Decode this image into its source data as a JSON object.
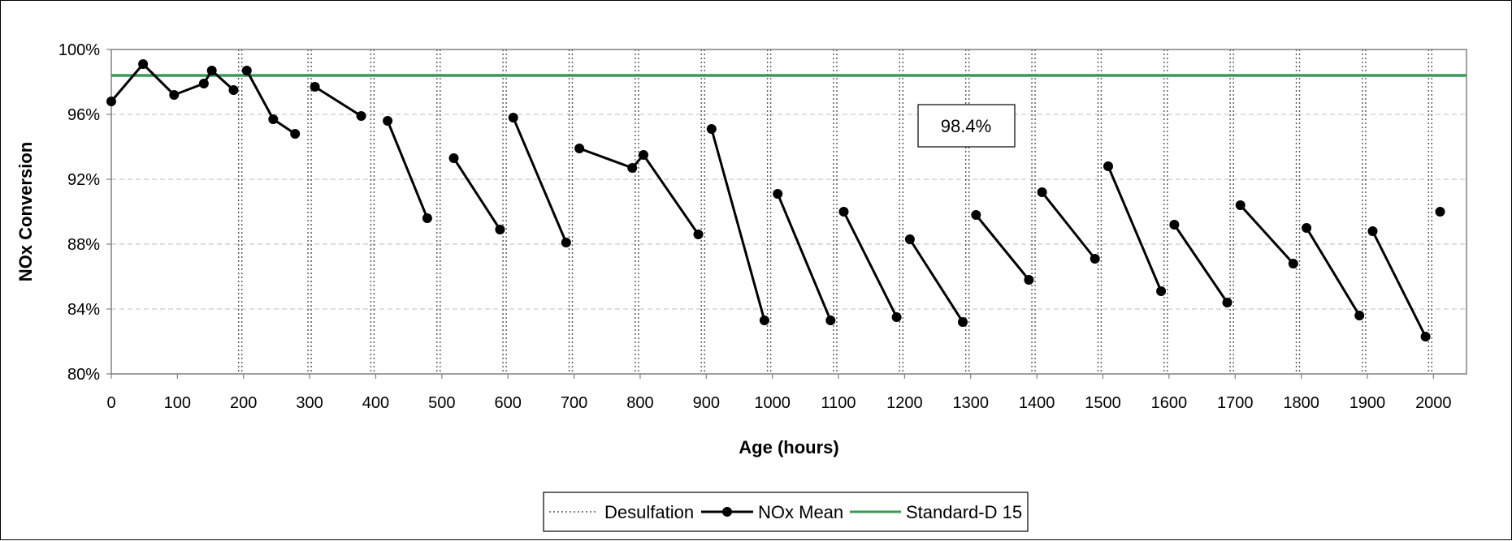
{
  "chart_data": {
    "type": "line",
    "xlabel": "Age (hours)",
    "ylabel": "NOx Conversion",
    "xlim": [
      0,
      2050
    ],
    "ylim": [
      80,
      100
    ],
    "x_ticks": [
      0,
      100,
      200,
      300,
      400,
      500,
      600,
      700,
      800,
      900,
      1000,
      1100,
      1200,
      1300,
      1400,
      1500,
      1600,
      1700,
      1800,
      1900,
      2000
    ],
    "y_ticks": [
      80,
      84,
      88,
      92,
      96,
      100
    ],
    "y_tick_labels": [
      "80%",
      "84%",
      "88%",
      "92%",
      "96%",
      "100%"
    ],
    "grid": "horizontal dashed",
    "legend_position": "bottom-center",
    "legend": [
      "Desulfation",
      "NOx Mean",
      "Standard-D 15"
    ],
    "desulfation": {
      "name": "Desulfation",
      "x": [
        195,
        300,
        395,
        495,
        595,
        695,
        795,
        895,
        995,
        1095,
        1195,
        1295,
        1395,
        1495,
        1595,
        1695,
        1795,
        1895,
        1995
      ],
      "color": "#555555"
    },
    "standard": {
      "name": "Standard-D 15",
      "y": 98.4,
      "color": "#3a9a5a"
    },
    "annotation": {
      "text": "98.4%"
    },
    "nox_mean": {
      "name": "NOx Mean",
      "color": "#000000",
      "segments": [
        [
          [
            0,
            96.8
          ],
          [
            48,
            99.1
          ],
          [
            95,
            97.2
          ],
          [
            140,
            97.9
          ],
          [
            152,
            98.7
          ],
          [
            185,
            97.5
          ]
        ],
        [
          [
            205,
            98.7
          ],
          [
            245,
            95.7
          ],
          [
            278,
            94.8
          ]
        ],
        [
          [
            308,
            97.7
          ],
          [
            378,
            95.9
          ]
        ],
        [
          [
            418,
            95.6
          ],
          [
            478,
            89.6
          ]
        ],
        [
          [
            518,
            93.3
          ],
          [
            588,
            88.9
          ]
        ],
        [
          [
            608,
            95.8
          ],
          [
            688,
            88.1
          ]
        ],
        [
          [
            708,
            93.9
          ],
          [
            788,
            92.7
          ],
          [
            805,
            93.5
          ],
          [
            888,
            88.6
          ]
        ],
        [
          [
            908,
            95.1
          ],
          [
            988,
            83.3
          ]
        ],
        [
          [
            1008,
            91.1
          ],
          [
            1088,
            83.3
          ]
        ],
        [
          [
            1108,
            90.0
          ],
          [
            1188,
            83.5
          ]
        ],
        [
          [
            1208,
            88.3
          ],
          [
            1288,
            83.2
          ]
        ],
        [
          [
            1308,
            89.8
          ],
          [
            1388,
            85.8
          ]
        ],
        [
          [
            1408,
            91.2
          ],
          [
            1488,
            87.1
          ]
        ],
        [
          [
            1508,
            92.8
          ],
          [
            1588,
            85.1
          ]
        ],
        [
          [
            1608,
            89.2
          ],
          [
            1688,
            84.4
          ]
        ],
        [
          [
            1708,
            90.4
          ],
          [
            1788,
            86.8
          ]
        ],
        [
          [
            1808,
            89.0
          ],
          [
            1888,
            83.6
          ]
        ],
        [
          [
            1908,
            88.8
          ],
          [
            1988,
            82.3
          ]
        ],
        [
          [
            2010,
            90.0
          ]
        ]
      ]
    }
  }
}
